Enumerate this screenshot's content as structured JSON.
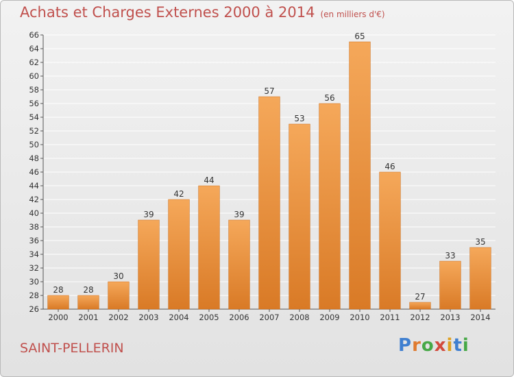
{
  "header": {
    "title": "Achats et Charges Externes 2000 à 2014",
    "subtitle": "(en milliers d'€)"
  },
  "footer": {
    "commune": "SAINT-PELLERIN",
    "logo_letters": [
      "P",
      "r",
      "o",
      "x",
      "i",
      "t",
      "i"
    ]
  },
  "colors": {
    "bar_light": "#f5a85a",
    "bar_dark": "#d97a26",
    "grid": "#ffffff",
    "title": "#c0504d"
  },
  "chart_data": {
    "type": "bar",
    "title": "Achats et Charges Externes 2000 à 2014",
    "subtitle": "(en milliers d'€)",
    "xlabel": "",
    "ylabel": "",
    "categories": [
      "2000",
      "2001",
      "2002",
      "2003",
      "2004",
      "2005",
      "2006",
      "2007",
      "2008",
      "2009",
      "2010",
      "2011",
      "2012",
      "2013",
      "2014"
    ],
    "values": [
      28,
      28,
      30,
      39,
      42,
      44,
      39,
      57,
      53,
      56,
      65,
      46,
      27,
      33,
      35
    ],
    "ylim": [
      26,
      66
    ],
    "ytick_step": 2,
    "grid": true
  }
}
